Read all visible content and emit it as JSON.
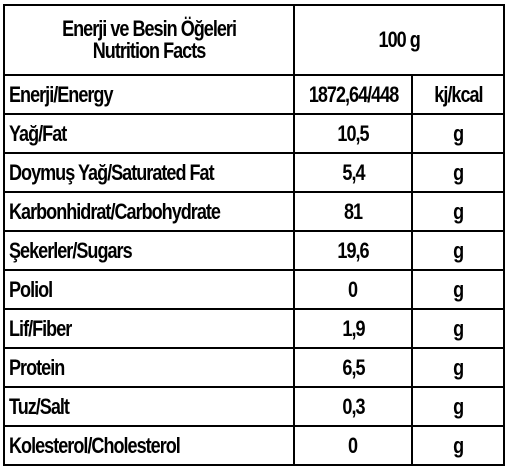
{
  "header": {
    "title_line1": "Enerji ve Besin Öğeleri",
    "title_line2": "Nutrition Facts",
    "serving": "100 g"
  },
  "rows": [
    {
      "label": "Enerji/Energy",
      "value": "1872,64/448",
      "unit": "kj/kcal"
    },
    {
      "label": "Yağ/Fat",
      "value": "10,5",
      "unit": "g"
    },
    {
      "label": "Doymuş Yağ/Saturated Fat",
      "value": "5,4",
      "unit": "g"
    },
    {
      "label": "Karbonhidrat/Carbohydrate",
      "value": "81",
      "unit": "g"
    },
    {
      "label": "Şekerler/Sugars",
      "value": "19,6",
      "unit": "g"
    },
    {
      "label": "Poliol",
      "value": "0",
      "unit": "g"
    },
    {
      "label": "Lif/Fiber",
      "value": "1,9",
      "unit": "g"
    },
    {
      "label": "Protein",
      "value": "6,5",
      "unit": "g"
    },
    {
      "label": "Tuz/Salt",
      "value": "0,3",
      "unit": "g"
    },
    {
      "label": "Kolesterol/Cholesterol",
      "value": "0",
      "unit": "g"
    }
  ]
}
